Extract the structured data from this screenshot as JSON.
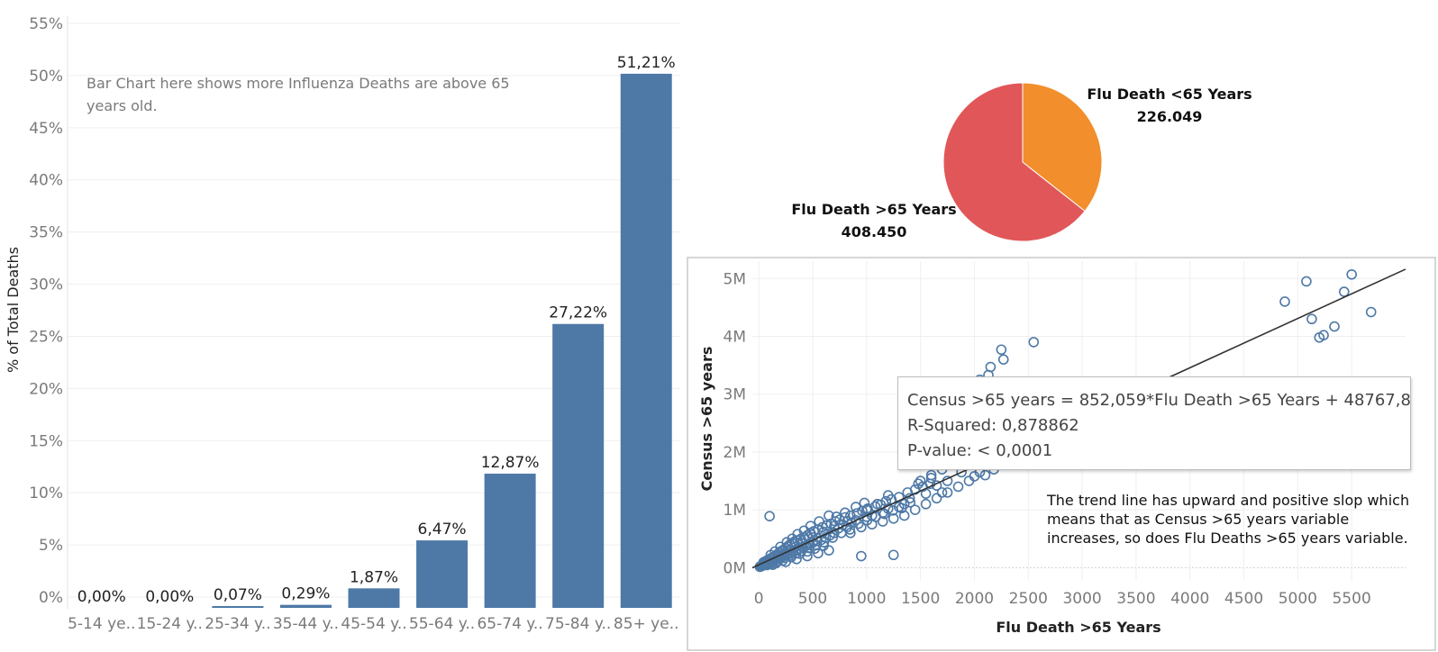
{
  "chart_data": [
    {
      "type": "bar",
      "ylabel": "% of Total Deaths",
      "ylim": [
        0,
        55
      ],
      "yticks": [
        "0%",
        "5%",
        "10%",
        "15%",
        "20%",
        "25%",
        "30%",
        "35%",
        "40%",
        "45%",
        "50%",
        "55%"
      ],
      "categories": [
        "5-14 ye..",
        "15-24 y..",
        "25-34 y..",
        "35-44 y..",
        "45-54 y..",
        "55-64 y..",
        "65-74 y..",
        "75-84 y..",
        "85+ ye.."
      ],
      "values": [
        0.0,
        0.0,
        0.07,
        0.29,
        1.87,
        6.47,
        12.87,
        27.22,
        51.21
      ],
      "value_labels": [
        "0,00%",
        "0,00%",
        "0,07%",
        "0,29%",
        "1,87%",
        "6,47%",
        "12,87%",
        "27,22%",
        "51,21%"
      ],
      "annotation": "Bar Chart here shows more Influenza Deaths are above 65 years old.",
      "bar_color": "#4e79a7"
    },
    {
      "type": "pie",
      "slices": [
        {
          "name": "Flu Death <65 Years",
          "value": 226049,
          "label_value": "226.049",
          "color": "#f28e2b"
        },
        {
          "name": "Flu Death >65 Years",
          "value": 408450,
          "label_value": "408.450",
          "color": "#e15759"
        }
      ]
    },
    {
      "type": "scatter",
      "xlabel": "Flu Death >65 Years",
      "ylabel": "Census >65 years",
      "xlim": [
        -60,
        6000
      ],
      "ylim": [
        -150000,
        5300000
      ],
      "xticks": [
        "0",
        "500",
        "1000",
        "1500",
        "2000",
        "2500",
        "3000",
        "3500",
        "4000",
        "4500",
        "5000",
        "5500"
      ],
      "yticks": [
        "0M",
        "1M",
        "2M",
        "3M",
        "4M",
        "5M"
      ],
      "trend": {
        "slope": 852.059,
        "intercept": 48767.8
      },
      "marker_color": "#4e79a7",
      "points": [
        [
          4880,
          4600000
        ],
        [
          5080,
          4950000
        ],
        [
          5130,
          4300000
        ],
        [
          5200,
          3980000
        ],
        [
          5240,
          4020000
        ],
        [
          5340,
          4170000
        ],
        [
          5430,
          4770000
        ],
        [
          5500,
          5070000
        ],
        [
          5680,
          4420000
        ],
        [
          2550,
          3900000
        ],
        [
          2250,
          3770000
        ],
        [
          2270,
          3600000
        ],
        [
          2150,
          3470000
        ],
        [
          2130,
          3330000
        ],
        [
          2050,
          3250000
        ],
        [
          1960,
          2150000
        ],
        [
          1920,
          1820000
        ],
        [
          1800,
          1780000
        ],
        [
          1700,
          1300000
        ],
        [
          1550,
          1280000
        ],
        [
          1480,
          1450000
        ],
        [
          950,
          200000
        ],
        [
          1250,
          220000
        ],
        [
          100,
          890000
        ],
        [
          1400,
          1200000
        ],
        [
          1350,
          1100000
        ],
        [
          1600,
          1550000
        ],
        [
          2100,
          1600000
        ],
        [
          2180,
          1700000
        ],
        [
          2000,
          1580000
        ],
        [
          1880,
          1650000
        ],
        [
          1750,
          1500000
        ],
        [
          1650,
          1420000
        ],
        [
          1200,
          1020000
        ],
        [
          1150,
          950000
        ],
        [
          1100,
          1100000
        ],
        [
          1050,
          900000
        ],
        [
          1000,
          880000
        ],
        [
          980,
          1120000
        ],
        [
          900,
          820000
        ],
        [
          860,
          780000
        ],
        [
          820,
          700000
        ],
        [
          780,
          740000
        ],
        [
          740,
          680000
        ],
        [
          700,
          600000
        ],
        [
          660,
          560000
        ],
        [
          620,
          520000
        ],
        [
          580,
          480000
        ],
        [
          540,
          460000
        ],
        [
          500,
          430000
        ],
        [
          470,
          400000
        ],
        [
          440,
          380000
        ],
        [
          410,
          350000
        ],
        [
          380,
          330000
        ],
        [
          350,
          300000
        ],
        [
          320,
          280000
        ],
        [
          300,
          260000
        ],
        [
          280,
          240000
        ],
        [
          260,
          220000
        ],
        [
          240,
          210000
        ],
        [
          220,
          190000
        ],
        [
          200,
          170000
        ],
        [
          180,
          150000
        ],
        [
          160,
          140000
        ],
        [
          140,
          120000
        ],
        [
          120,
          100000
        ],
        [
          100,
          90000
        ],
        [
          80,
          70000
        ],
        [
          60,
          60000
        ],
        [
          50,
          50000
        ],
        [
          40,
          40000
        ],
        [
          30,
          30000
        ],
        [
          20,
          20000
        ],
        [
          10,
          15000
        ],
        [
          70,
          120000
        ],
        [
          90,
          130000
        ],
        [
          110,
          160000
        ],
        [
          130,
          180000
        ],
        [
          150,
          200000
        ],
        [
          170,
          230000
        ],
        [
          190,
          260000
        ],
        [
          210,
          290000
        ],
        [
          230,
          310000
        ],
        [
          250,
          340000
        ],
        [
          270,
          370000
        ],
        [
          290,
          400000
        ],
        [
          310,
          420000
        ],
        [
          330,
          450000
        ],
        [
          360,
          470000
        ],
        [
          390,
          500000
        ],
        [
          420,
          520000
        ],
        [
          450,
          560000
        ],
        [
          480,
          600000
        ],
        [
          510,
          630000
        ],
        [
          550,
          660000
        ],
        [
          590,
          700000
        ],
        [
          630,
          730000
        ],
        [
          670,
          760000
        ],
        [
          710,
          800000
        ],
        [
          750,
          830000
        ],
        [
          800,
          870000
        ],
        [
          850,
          900000
        ],
        [
          910,
          940000
        ],
        [
          960,
          980000
        ],
        [
          1010,
          1020000
        ],
        [
          1080,
          1060000
        ],
        [
          1130,
          1090000
        ],
        [
          1180,
          1150000
        ],
        [
          1230,
          1180000
        ],
        [
          1300,
          1220000
        ],
        [
          1380,
          1300000
        ],
        [
          1450,
          1350000
        ],
        [
          1520,
          1400000
        ],
        [
          1590,
          1450000
        ],
        [
          600,
          380000
        ],
        [
          520,
          330000
        ],
        [
          450,
          280000
        ],
        [
          380,
          240000
        ],
        [
          300,
          180000
        ],
        [
          220,
          120000
        ],
        [
          160,
          80000
        ],
        [
          650,
          900000
        ],
        [
          720,
          880000
        ],
        [
          820,
          800000
        ],
        [
          560,
          800000
        ],
        [
          480,
          720000
        ],
        [
          420,
          640000
        ],
        [
          360,
          580000
        ],
        [
          310,
          500000
        ],
        [
          260,
          440000
        ],
        [
          200,
          360000
        ],
        [
          150,
          280000
        ],
        [
          110,
          220000
        ],
        [
          130,
          50000
        ],
        [
          250,
          100000
        ],
        [
          350,
          150000
        ],
        [
          450,
          200000
        ],
        [
          550,
          250000
        ],
        [
          650,
          300000
        ],
        [
          850,
          600000
        ],
        [
          950,
          700000
        ],
        [
          1050,
          750000
        ],
        [
          1150,
          800000
        ],
        [
          1250,
          850000
        ],
        [
          1350,
          900000
        ],
        [
          1450,
          1000000
        ],
        [
          1550,
          1100000
        ],
        [
          1650,
          1200000
        ],
        [
          1750,
          1300000
        ],
        [
          1850,
          1400000
        ],
        [
          1950,
          1500000
        ],
        [
          2050,
          1650000
        ],
        [
          1700,
          1700000
        ],
        [
          1600,
          1600000
        ],
        [
          1500,
          1500000
        ],
        [
          1300,
          1050000
        ],
        [
          1200,
          1250000
        ],
        [
          1000,
          1000000
        ],
        [
          900,
          1050000
        ],
        [
          800,
          950000
        ],
        [
          700,
          720000
        ],
        [
          600,
          620000
        ],
        [
          500,
          520000
        ],
        [
          400,
          420000
        ],
        [
          340,
          360000
        ],
        [
          280,
          300000
        ],
        [
          240,
          260000
        ],
        [
          190,
          200000
        ],
        [
          140,
          160000
        ],
        [
          95,
          110000
        ],
        [
          55,
          75000
        ],
        [
          35,
          55000
        ],
        [
          25,
          35000
        ],
        [
          15,
          25000
        ],
        [
          45,
          95000
        ],
        [
          75,
          45000
        ],
        [
          115,
          70000
        ],
        [
          175,
          110000
        ],
        [
          235,
          170000
        ],
        [
          295,
          210000
        ],
        [
          345,
          250000
        ],
        [
          395,
          290000
        ],
        [
          465,
          340000
        ],
        [
          535,
          390000
        ],
        [
          605,
          440000
        ],
        [
          685,
          520000
        ],
        [
          765,
          600000
        ],
        [
          845,
          660000
        ],
        [
          925,
          760000
        ],
        [
          1005,
          820000
        ],
        [
          1085,
          880000
        ],
        [
          1165,
          930000
        ],
        [
          1245,
          990000
        ],
        [
          1325,
          1030000
        ],
        [
          1405,
          1130000
        ]
      ]
    }
  ],
  "tooltip": {
    "equation": "Census >65 years = 852,059*Flu Death >65 Years + 48767,8",
    "r_squared": "R-Squared: 0,878862",
    "p_value": "P-value: < 0,0001"
  },
  "note": "The trend line has upward and positive slop which means that as Census >65 years variable increases, so does Flu Deaths >65 years variable."
}
